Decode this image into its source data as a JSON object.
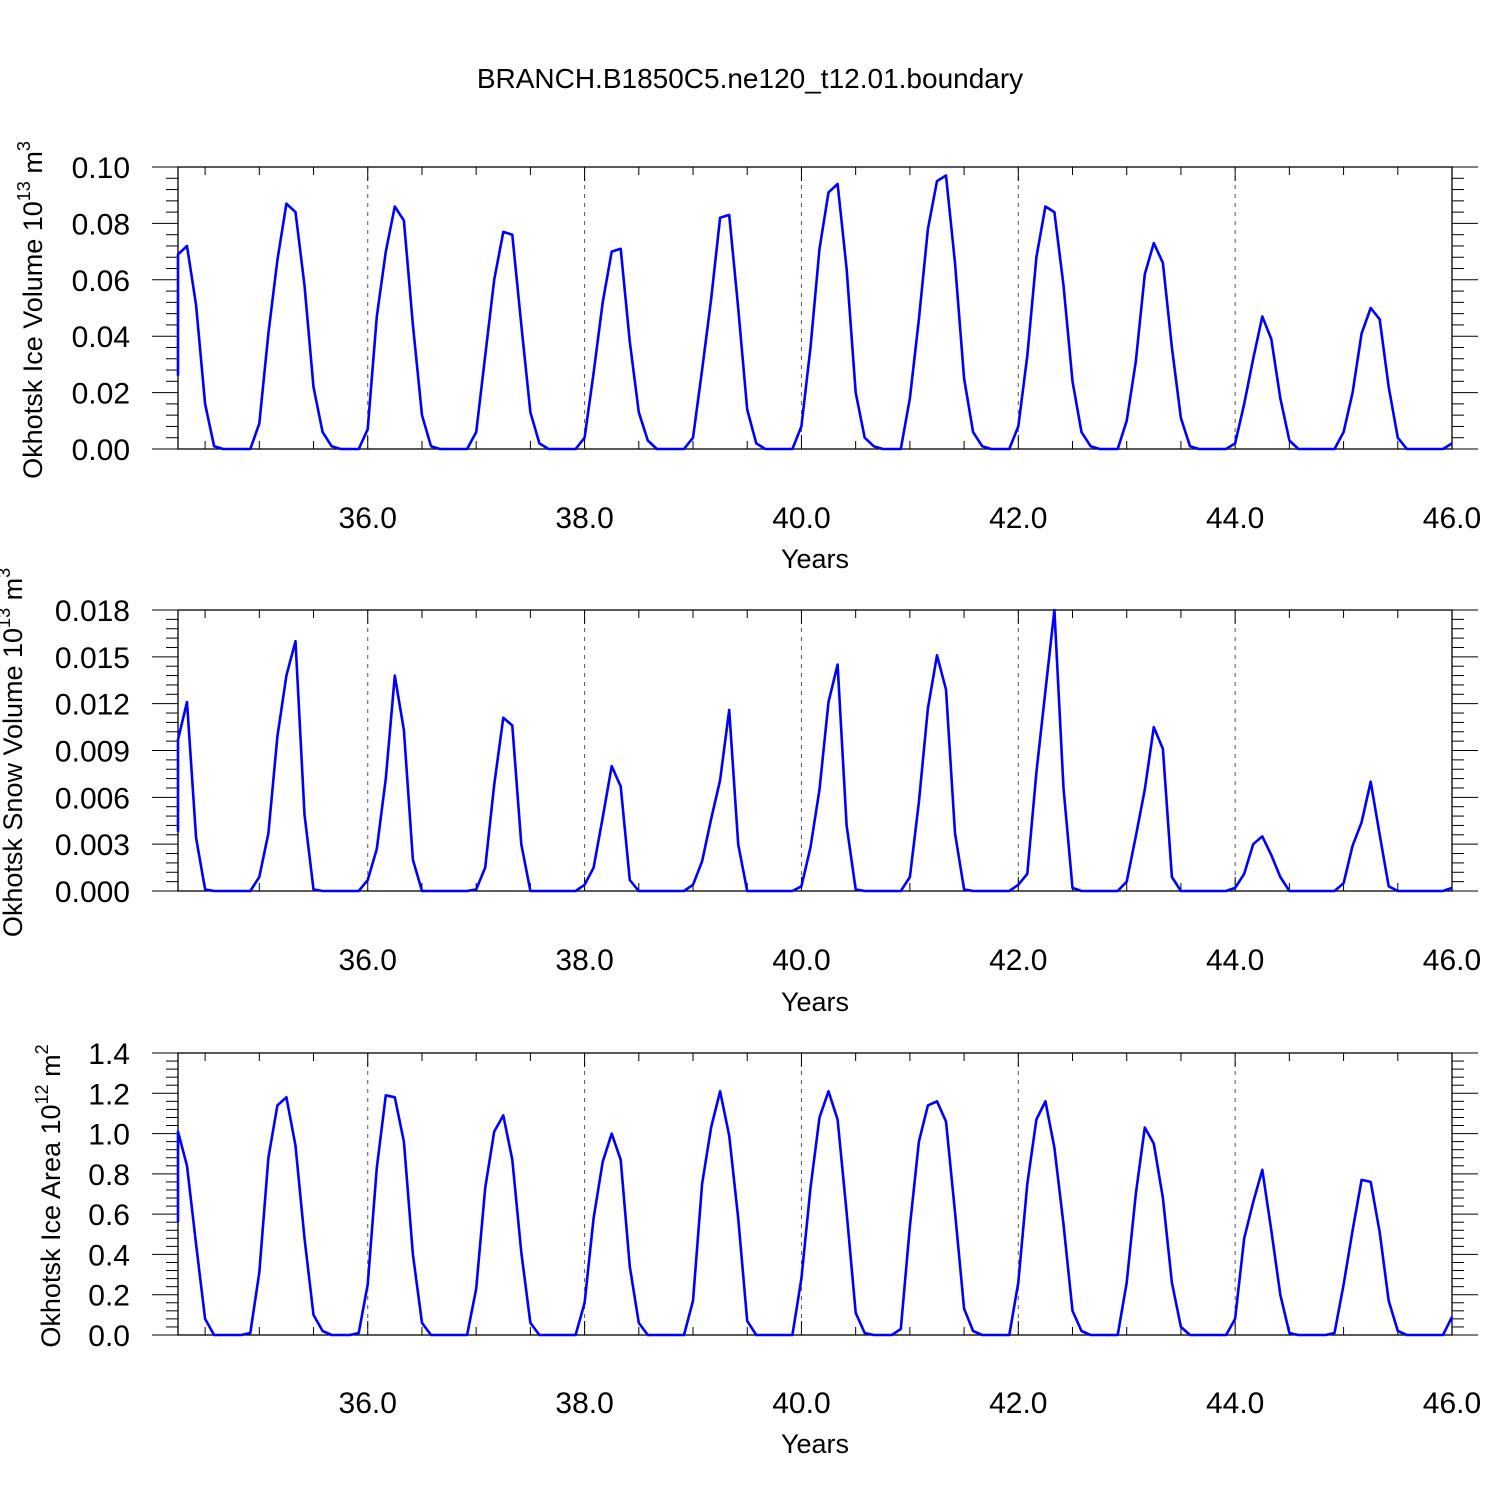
{
  "figure_title": "BRANCH.B1850C5.ne120_t12.01.boundary",
  "chart_data": [
    {
      "type": "line",
      "title": "",
      "xlabel": "Years",
      "ylabel_main": "Okhotsk Ice Volume 10",
      "ylabel_exp": "13",
      "ylabel_unit": " m",
      "ylabel_unit_exp": "3",
      "xlim": [
        34.25,
        46.0
      ],
      "ylim": [
        0.0,
        0.1
      ],
      "xticks": [
        36,
        38,
        40,
        42,
        44,
        46
      ],
      "xtick_labels": [
        "36.0",
        "38.0",
        "40.0",
        "42.0",
        "44.0",
        "46.0"
      ],
      "yticks": [
        0.0,
        0.02,
        0.04,
        0.06,
        0.08,
        0.1
      ],
      "ytick_labels": [
        "0.00",
        "0.02",
        "0.04",
        "0.06",
        "0.08",
        "0.10"
      ],
      "vgrid": [
        36,
        38,
        40,
        42,
        44
      ],
      "series": [
        {
          "name": "Okhotsk Ice Volume",
          "color": "#0000ff",
          "x_start": 34.0833,
          "x_step": 0.0833333,
          "values": [
            0.026,
            0.05,
            0.069,
            0.072,
            0.051,
            0.016,
            0.001,
            0.0,
            0.0,
            0.0,
            0.0,
            0.009,
            0.041,
            0.067,
            0.087,
            0.084,
            0.058,
            0.022,
            0.006,
            0.001,
            0.0,
            0.0,
            0.0,
            0.007,
            0.047,
            0.07,
            0.086,
            0.081,
            0.044,
            0.012,
            0.001,
            0.0,
            0.0,
            0.0,
            0.0,
            0.006,
            0.033,
            0.06,
            0.077,
            0.076,
            0.044,
            0.013,
            0.002,
            0.0,
            0.0,
            0.0,
            0.0,
            0.004,
            0.027,
            0.052,
            0.07,
            0.071,
            0.038,
            0.013,
            0.003,
            0.0,
            0.0,
            0.0,
            0.0,
            0.004,
            0.028,
            0.053,
            0.082,
            0.083,
            0.05,
            0.014,
            0.002,
            0.0,
            0.0,
            0.0,
            0.0,
            0.008,
            0.036,
            0.071,
            0.091,
            0.094,
            0.064,
            0.02,
            0.004,
            0.001,
            0.0,
            0.0,
            0.0,
            0.018,
            0.046,
            0.078,
            0.095,
            0.097,
            0.066,
            0.025,
            0.006,
            0.001,
            0.0,
            0.0,
            0.0,
            0.008,
            0.033,
            0.068,
            0.086,
            0.084,
            0.058,
            0.024,
            0.006,
            0.001,
            0.0,
            0.0,
            0.0,
            0.01,
            0.031,
            0.062,
            0.073,
            0.066,
            0.036,
            0.011,
            0.001,
            0.0,
            0.0,
            0.0,
            0.0,
            0.002,
            0.016,
            0.032,
            0.047,
            0.039,
            0.018,
            0.003,
            0.0,
            0.0,
            0.0,
            0.0,
            0.0,
            0.006,
            0.02,
            0.041,
            0.05,
            0.046,
            0.022,
            0.004,
            0.0,
            0.0,
            0.0,
            0.0,
            0.0,
            0.002
          ]
        }
      ]
    },
    {
      "type": "line",
      "title": "",
      "xlabel": "Years",
      "ylabel_main": "Okhotsk Snow Volume 10",
      "ylabel_exp": "13",
      "ylabel_unit": " m",
      "ylabel_unit_exp": "3",
      "xlim": [
        34.25,
        46.0
      ],
      "ylim": [
        0.0,
        0.018
      ],
      "xticks": [
        36,
        38,
        40,
        42,
        44,
        46
      ],
      "xtick_labels": [
        "36.0",
        "38.0",
        "40.0",
        "42.0",
        "44.0",
        "46.0"
      ],
      "yticks": [
        0.0,
        0.003,
        0.006,
        0.009,
        0.012,
        0.015,
        0.018
      ],
      "ytick_labels": [
        "0.000",
        "0.003",
        "0.006",
        "0.009",
        "0.012",
        "0.015",
        "0.018"
      ],
      "vgrid": [
        36,
        38,
        40,
        42,
        44
      ],
      "series": [
        {
          "name": "Okhotsk Snow Volume",
          "color": "#0000ff",
          "x_start": 34.0833,
          "x_step": 0.0833333,
          "values": [
            0.0038,
            0.0062,
            0.0097,
            0.0121,
            0.0034,
            0.0001,
            0.0,
            0.0,
            0.0,
            0.0,
            0.0,
            0.0009,
            0.0037,
            0.0099,
            0.0138,
            0.016,
            0.0049,
            0.0001,
            0.0,
            0.0,
            0.0,
            0.0,
            0.0,
            0.0007,
            0.0027,
            0.0072,
            0.0138,
            0.0103,
            0.002,
            0.0,
            0.0,
            0.0,
            0.0,
            0.0,
            0.0,
            0.0001,
            0.0015,
            0.0068,
            0.0111,
            0.0106,
            0.003,
            0.0,
            0.0,
            0.0,
            0.0,
            0.0,
            0.0,
            0.0004,
            0.0015,
            0.0047,
            0.008,
            0.0067,
            0.0007,
            0.0,
            0.0,
            0.0,
            0.0,
            0.0,
            0.0,
            0.0004,
            0.0019,
            0.0046,
            0.0071,
            0.0116,
            0.003,
            0.0,
            0.0,
            0.0,
            0.0,
            0.0,
            0.0,
            0.0003,
            0.0028,
            0.0065,
            0.0121,
            0.0145,
            0.0042,
            0.0001,
            0.0,
            0.0,
            0.0,
            0.0,
            0.0,
            0.0009,
            0.0057,
            0.0117,
            0.0151,
            0.0129,
            0.0037,
            0.0001,
            0.0,
            0.0,
            0.0,
            0.0,
            0.0,
            0.0004,
            0.0011,
            0.0076,
            0.0128,
            0.018,
            0.0066,
            0.0002,
            0.0,
            0.0,
            0.0,
            0.0,
            0.0,
            0.0006,
            0.0035,
            0.0065,
            0.0105,
            0.0091,
            0.0009,
            0.0,
            0.0,
            0.0,
            0.0,
            0.0,
            0.0,
            0.0002,
            0.0011,
            0.003,
            0.0035,
            0.0023,
            0.0009,
            0.0,
            0.0,
            0.0,
            0.0,
            0.0,
            0.0,
            0.0005,
            0.0029,
            0.0044,
            0.007,
            0.0036,
            0.0003,
            0.0,
            0.0,
            0.0,
            0.0,
            0.0,
            0.0,
            0.0002
          ]
        }
      ]
    },
    {
      "type": "line",
      "title": "",
      "xlabel": "Years",
      "ylabel_main": "Okhotsk Ice Area 10",
      "ylabel_exp": "12",
      "ylabel_unit": " m",
      "ylabel_unit_exp": "2",
      "xlim": [
        34.25,
        46.0
      ],
      "ylim": [
        0.0,
        1.4
      ],
      "xticks": [
        36,
        38,
        40,
        42,
        44,
        46
      ],
      "xtick_labels": [
        "36.0",
        "38.0",
        "40.0",
        "42.0",
        "44.0",
        "46.0"
      ],
      "yticks": [
        0.0,
        0.2,
        0.4,
        0.6,
        0.8,
        1.0,
        1.2,
        1.4
      ],
      "ytick_labels": [
        "0.0",
        "0.2",
        "0.4",
        "0.6",
        "0.8",
        "1.0",
        "1.2",
        "1.4"
      ],
      "vgrid": [
        36,
        38,
        40,
        42,
        44
      ],
      "series": [
        {
          "name": "Okhotsk Ice Area",
          "color": "#0000ff",
          "x_start": 34.0833,
          "x_step": 0.0833333,
          "values": [
            0.56,
            0.87,
            1.01,
            0.84,
            0.45,
            0.08,
            0.0,
            0.0,
            0.0,
            0.0,
            0.01,
            0.31,
            0.88,
            1.14,
            1.18,
            0.94,
            0.48,
            0.1,
            0.02,
            0.0,
            0.0,
            0.0,
            0.01,
            0.25,
            0.83,
            1.19,
            1.18,
            0.96,
            0.4,
            0.06,
            0.0,
            0.0,
            0.0,
            0.0,
            0.0,
            0.23,
            0.73,
            1.01,
            1.09,
            0.87,
            0.41,
            0.06,
            0.0,
            0.0,
            0.0,
            0.0,
            0.0,
            0.16,
            0.58,
            0.86,
            1.0,
            0.87,
            0.34,
            0.06,
            0.0,
            0.0,
            0.0,
            0.0,
            0.0,
            0.17,
            0.75,
            1.03,
            1.21,
            0.99,
            0.58,
            0.07,
            0.0,
            0.0,
            0.0,
            0.0,
            0.0,
            0.28,
            0.73,
            1.08,
            1.21,
            1.07,
            0.61,
            0.11,
            0.01,
            0.0,
            0.0,
            0.0,
            0.03,
            0.54,
            0.96,
            1.14,
            1.16,
            1.06,
            0.61,
            0.13,
            0.02,
            0.0,
            0.0,
            0.0,
            0.0,
            0.26,
            0.75,
            1.07,
            1.16,
            0.93,
            0.55,
            0.12,
            0.02,
            0.0,
            0.0,
            0.0,
            0.0,
            0.26,
            0.7,
            1.03,
            0.95,
            0.68,
            0.26,
            0.04,
            0.0,
            0.0,
            0.0,
            0.0,
            0.0,
            0.08,
            0.48,
            0.66,
            0.82,
            0.52,
            0.2,
            0.01,
            0.0,
            0.0,
            0.0,
            0.0,
            0.01,
            0.25,
            0.52,
            0.77,
            0.76,
            0.51,
            0.17,
            0.02,
            0.0,
            0.0,
            0.0,
            0.0,
            0.0,
            0.09
          ]
        }
      ]
    }
  ]
}
